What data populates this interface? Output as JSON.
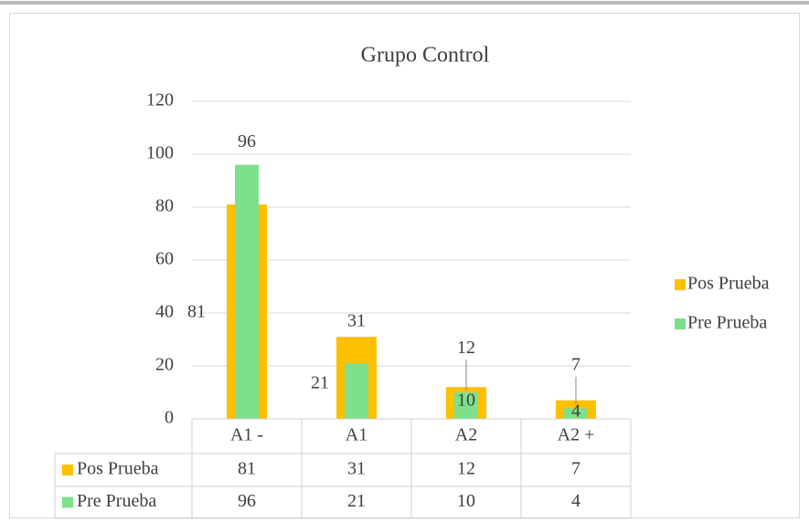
{
  "chart_data": {
    "type": "bar",
    "title": "Grupo Control",
    "categories": [
      "A1 -",
      "A1",
      "A2",
      "A2 +"
    ],
    "series": [
      {
        "name": "Pos Prueba",
        "color": "#ffc000",
        "values": [
          81,
          31,
          12,
          7
        ]
      },
      {
        "name": "Pre Prueba",
        "color": "#7ee08c",
        "values": [
          96,
          21,
          10,
          4
        ]
      }
    ],
    "ylim": [
      0,
      120
    ],
    "yticks": [
      0,
      20,
      40,
      60,
      80,
      100,
      120
    ],
    "grid": true,
    "legend": "right",
    "data_table": true
  }
}
